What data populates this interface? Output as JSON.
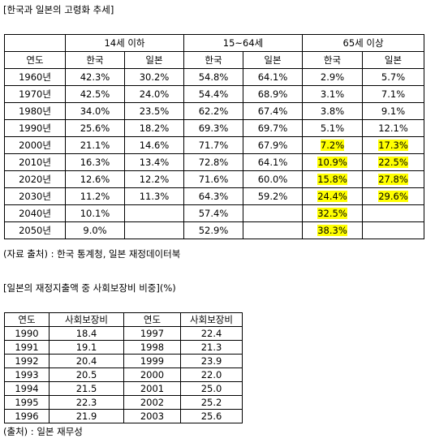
{
  "title1": "[한국과 일본의 고령화 추세]",
  "table1": {
    "groups": [
      "14세 이하",
      "15~64세",
      "65세 이상"
    ],
    "columns": [
      "연도",
      "한국",
      "일본",
      "한국",
      "일본",
      "한국",
      "일본"
    ],
    "rows": [
      [
        "1960년",
        "42.3%",
        "30.2%",
        "54.8%",
        "64.1%",
        "2.9%",
        "5.7%"
      ],
      [
        "1970년",
        "42.5%",
        "24.0%",
        "54.4%",
        "68.9%",
        "3.1%",
        "7.1%"
      ],
      [
        "1980년",
        "34.0%",
        "23.5%",
        "62.2%",
        "67.4%",
        "3.8%",
        "9.1%"
      ],
      [
        "1990년",
        "25.6%",
        "18.2%",
        "69.3%",
        "69.7%",
        "5.1%",
        "12.1%"
      ],
      [
        "2000년",
        "21.1%",
        "14.6%",
        "71.7%",
        "67.9%",
        "7.2%",
        "17.3%"
      ],
      [
        "2010년",
        "16.3%",
        "13.4%",
        "72.8%",
        "64.1%",
        "10.9%",
        "22.5%"
      ],
      [
        "2020년",
        "12.6%",
        "12.2%",
        "71.6%",
        "60.0%",
        "15.8%",
        "27.8%"
      ],
      [
        "2030년",
        "11.2%",
        "11.3%",
        "64.3%",
        "59.2%",
        "24.4%",
        "29.6%"
      ],
      [
        "2040년",
        "10.1%",
        null,
        "57.4%",
        null,
        "32.5%",
        null
      ],
      [
        "2050년",
        "9.0%",
        null,
        "52.9%",
        null,
        "38.3%",
        null
      ]
    ]
  },
  "source1": "(자료 출처) : 한국 통계청, 일본 재정데이터북",
  "title2": "[일본의 재정지출액 중 사회보장비 비중](%)",
  "table2": {
    "columns": [
      "연도",
      "사회보장비",
      "연도",
      "사회보장비"
    ],
    "rows": [
      [
        "1990",
        "18.4",
        "1997",
        "22.4"
      ],
      [
        "1991",
        "19.1",
        "1998",
        "21.3"
      ],
      [
        "1992",
        "20.4",
        "1999",
        "23.9"
      ],
      [
        "1993",
        "20.5",
        "2000",
        "22.0"
      ],
      [
        "1994",
        "21.5",
        "2001",
        "25.0"
      ],
      [
        "1995",
        "22.3",
        "2002",
        "25.2"
      ],
      [
        "1996",
        "21.9",
        "2003",
        "25.6"
      ]
    ]
  },
  "source2": "(출처) : 일본 재무성"
}
